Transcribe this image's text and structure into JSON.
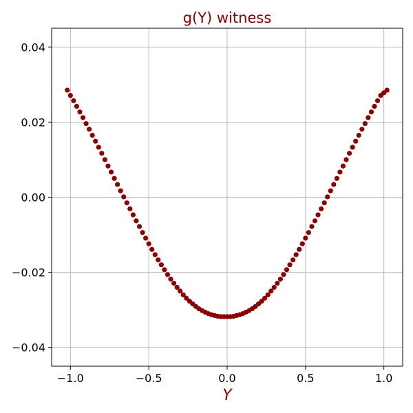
{
  "chart_data": {
    "type": "scatter",
    "title": "g(Y) witness",
    "xlabel": "Y",
    "ylabel": "",
    "xlim": [
      -1.12,
      1.12
    ],
    "ylim": [
      -0.045,
      0.045
    ],
    "xticks": [
      -1.0,
      -0.5,
      0.0,
      0.5,
      1.0
    ],
    "xtick_labels": [
      "−1.0",
      "−0.5",
      "0.0",
      "0.5",
      "1.0"
    ],
    "yticks": [
      -0.04,
      -0.02,
      0.0,
      0.02,
      0.04
    ],
    "ytick_labels": [
      "−0.04",
      "−0.02",
      "0.00",
      "0.02",
      "0.04"
    ],
    "grid": true,
    "marker_color": "#8b0000",
    "title_color": "#8b0000",
    "xlabel_color": "#8b0000",
    "series": [
      {
        "x": [
          -1.02,
          -1.0,
          -0.98,
          -0.96,
          -0.94,
          -0.92,
          -0.9,
          -0.88,
          -0.86,
          -0.84,
          -0.82,
          -0.8,
          -0.78,
          -0.76,
          -0.74,
          -0.72,
          -0.7,
          -0.68,
          -0.66,
          -0.64,
          -0.62,
          -0.6,
          -0.58,
          -0.56,
          -0.54,
          -0.52,
          -0.5,
          -0.48,
          -0.46,
          -0.44,
          -0.42,
          -0.4,
          -0.38,
          -0.36,
          -0.34,
          -0.32,
          -0.3,
          -0.28,
          -0.26,
          -0.24,
          -0.22,
          -0.2,
          -0.18,
          -0.16,
          -0.14,
          -0.12,
          -0.1,
          -0.08,
          -0.06,
          -0.04,
          -0.02,
          0.0,
          0.02,
          0.04,
          0.06,
          0.08,
          0.1,
          0.12,
          0.14,
          0.16,
          0.18,
          0.2,
          0.22,
          0.24,
          0.26,
          0.28,
          0.3,
          0.32,
          0.34,
          0.36,
          0.38,
          0.4,
          0.42,
          0.44,
          0.46,
          0.48,
          0.5,
          0.52,
          0.54,
          0.56,
          0.58,
          0.6,
          0.62,
          0.64,
          0.66,
          0.68,
          0.7,
          0.72,
          0.74,
          0.76,
          0.78,
          0.8,
          0.82,
          0.84,
          0.86,
          0.88,
          0.9,
          0.92,
          0.94,
          0.96,
          0.98,
          1.0,
          1.02
        ],
        "y": [
          0.0285,
          0.0271,
          0.0257,
          0.0242,
          0.0227,
          0.0212,
          0.0196,
          0.0181,
          0.0165,
          0.0149,
          0.0133,
          0.0117,
          0.01,
          0.0083,
          0.0067,
          0.005,
          0.0034,
          0.0017,
          0.0001,
          -0.0015,
          -0.0031,
          -0.0047,
          -0.0063,
          -0.0078,
          -0.0094,
          -0.0109,
          -0.0124,
          -0.0139,
          -0.0153,
          -0.0167,
          -0.018,
          -0.0193,
          -0.0206,
          -0.0218,
          -0.0229,
          -0.024,
          -0.025,
          -0.026,
          -0.0269,
          -0.0277,
          -0.0284,
          -0.0291,
          -0.0297,
          -0.0302,
          -0.0306,
          -0.031,
          -0.0313,
          -0.0315,
          -0.0317,
          -0.0318,
          -0.0318,
          -0.0318,
          -0.0318,
          -0.0317,
          -0.0315,
          -0.0313,
          -0.031,
          -0.0306,
          -0.0302,
          -0.0297,
          -0.0291,
          -0.0284,
          -0.0277,
          -0.0269,
          -0.026,
          -0.025,
          -0.024,
          -0.0229,
          -0.0218,
          -0.0206,
          -0.0193,
          -0.018,
          -0.0167,
          -0.0153,
          -0.0139,
          -0.0124,
          -0.0109,
          -0.0094,
          -0.0078,
          -0.0063,
          -0.0047,
          -0.0031,
          -0.0015,
          0.0001,
          0.0017,
          0.0034,
          0.005,
          0.0067,
          0.0083,
          0.01,
          0.0117,
          0.0133,
          0.0149,
          0.0165,
          0.0181,
          0.0196,
          0.0212,
          0.0227,
          0.0242,
          0.0257,
          0.0271,
          0.0278,
          0.0285
        ]
      }
    ]
  }
}
